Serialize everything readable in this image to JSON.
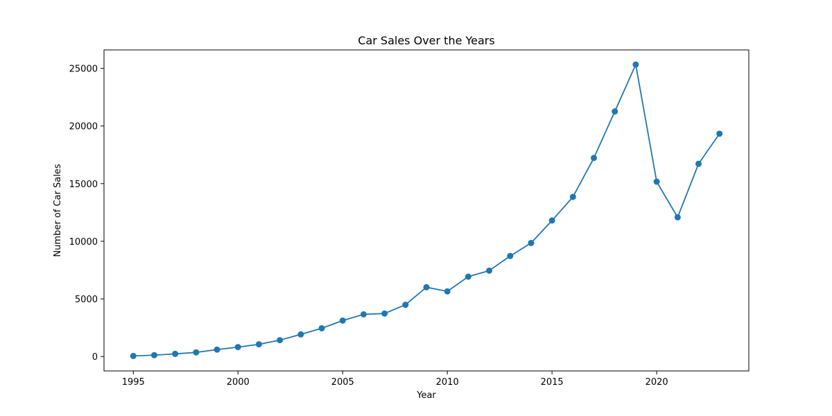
{
  "chart_data": {
    "type": "line",
    "title": "Car Sales Over the Years",
    "xlabel": "Year",
    "ylabel": "Number of Car Sales",
    "xlim": [
      1993.6,
      2024.4
    ],
    "ylim": [
      -1250,
      26600
    ],
    "xticks": [
      1995,
      2000,
      2005,
      2010,
      2015,
      2020
    ],
    "yticks": [
      0,
      5000,
      10000,
      15000,
      20000,
      25000
    ],
    "grid": false,
    "marker": "circle",
    "colors": {
      "line": "#1f77b4",
      "marker": "#1f77b4",
      "axes": "#000000",
      "background": "#ffffff"
    },
    "x": [
      1995,
      1996,
      1997,
      1998,
      1999,
      2000,
      2001,
      2002,
      2003,
      2004,
      2005,
      2006,
      2007,
      2008,
      2009,
      2010,
      2011,
      2012,
      2013,
      2014,
      2015,
      2016,
      2017,
      2018,
      2019,
      2020,
      2021,
      2022,
      2023
    ],
    "series": [
      {
        "values": [
          50,
          120,
          230,
          360,
          600,
          820,
          1060,
          1420,
          1920,
          2450,
          3120,
          3660,
          3730,
          4490,
          6010,
          5650,
          6930,
          7450,
          8720,
          9850,
          11800,
          13850,
          17230,
          21260,
          25330,
          15170,
          12080,
          16720,
          19330
        ]
      }
    ]
  }
}
